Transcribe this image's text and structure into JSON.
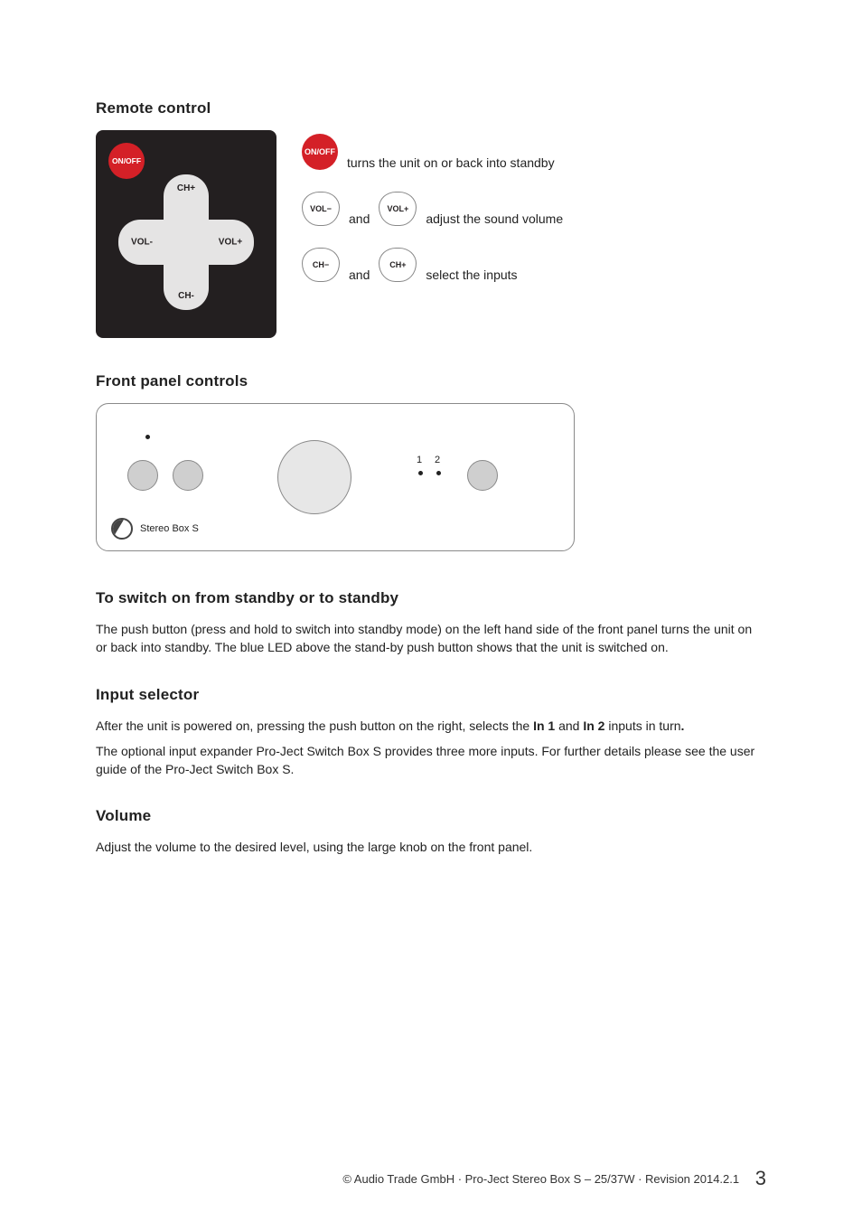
{
  "sections": {
    "remote_control": "Remote control",
    "front_panel": "Front panel controls",
    "standby": "To switch on from standby or to standby",
    "input_selector": "Input selector",
    "volume": "Volume"
  },
  "remote": {
    "onoff": "ON/OFF",
    "ch_plus": "CH+",
    "ch_minus": "CH-",
    "vol_plus": "VOL+",
    "vol_minus": "VOL-"
  },
  "legend": {
    "onoff_btn": "ON/OFF",
    "onoff_text": "turns the unit on or back into standby",
    "vol_minus": "VOL−",
    "vol_plus": "VOL+",
    "vol_and": "and",
    "vol_text": "adjust the sound volume",
    "ch_minus": "CH−",
    "ch_plus": "CH+",
    "ch_and": "and",
    "ch_text": "select the inputs"
  },
  "front_panel": {
    "ind1": "1",
    "ind2": "2",
    "product": "Stereo Box S"
  },
  "text": {
    "standby_p": "The push button (press and hold to switch into standby mode) on the left hand side of the front panel turns the unit on or back into standby. The blue LED above the stand-by push button shows that the unit is switched on.",
    "input_p1_a": "After the unit is powered on, pressing the push button on the right, selects the ",
    "input_p1_in1": "In 1",
    "input_p1_mid": " and ",
    "input_p1_in2": "In 2",
    "input_p1_b": " inputs in turn",
    "input_p1_dot": ".",
    "input_p2": "The optional input expander Pro-Ject Switch Box S provides three more inputs. For further details please see the user guide of the Pro-Ject Switch Box S.",
    "volume_p": "Adjust the volume to the desired level, using the large knob on the front panel."
  },
  "footer": {
    "text": "© Audio Trade GmbH · Pro-Ject Stereo Box S – 25/37W · Revision 2014.2.1",
    "page": "3"
  },
  "colors": {
    "red": "#d42027",
    "remote_bg": "#231f20",
    "panel_border": "#8a8a8a"
  }
}
